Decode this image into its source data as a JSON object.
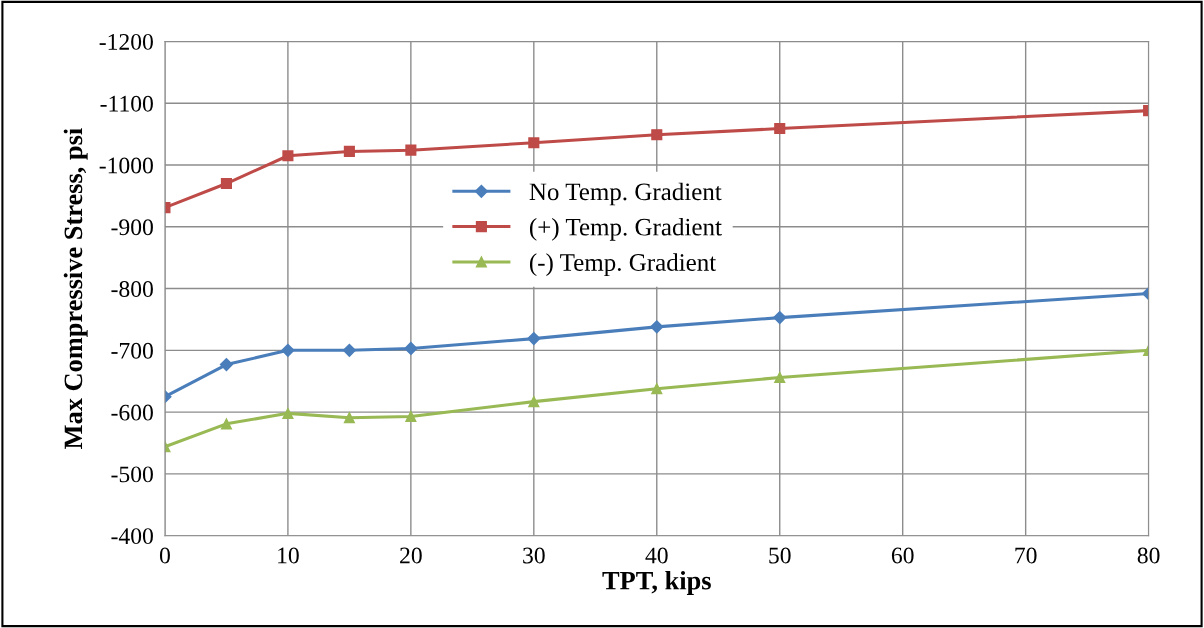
{
  "chart_data": {
    "type": "line",
    "xlabel": "TPT, kips",
    "ylabel": "Max Compressive Stress, psi",
    "x": [
      0,
      5,
      10,
      15,
      20,
      30,
      40,
      50,
      80
    ],
    "series": [
      {
        "name": "No Temp. Gradient",
        "color": "#4a7ebb",
        "marker": "diamond",
        "values": [
          -625,
          -677,
          -700,
          -700,
          -703,
          -719,
          -738,
          -753,
          -792
        ]
      },
      {
        "name": "(+) Temp. Gradient",
        "color": "#be4b48",
        "marker": "square",
        "values": [
          -931,
          -970,
          -1015,
          -1022,
          -1024,
          -1036,
          -1049,
          -1059,
          -1088
        ]
      },
      {
        "name": "(-) Temp. Gradient",
        "color": "#98b954",
        "marker": "triangle",
        "values": [
          -544,
          -581,
          -598,
          -591,
          -593,
          -617,
          -638,
          -656,
          -700
        ]
      }
    ],
    "xlim": [
      0,
      80
    ],
    "xticks": [
      0,
      10,
      20,
      30,
      40,
      50,
      60,
      70,
      80
    ],
    "ylim": [
      -400,
      -1200
    ],
    "yticks": [
      -400,
      -500,
      -600,
      -700,
      -800,
      -900,
      -1000,
      -1100,
      -1200
    ],
    "grid": true,
    "legend": "center",
    "line_style": "solid"
  }
}
